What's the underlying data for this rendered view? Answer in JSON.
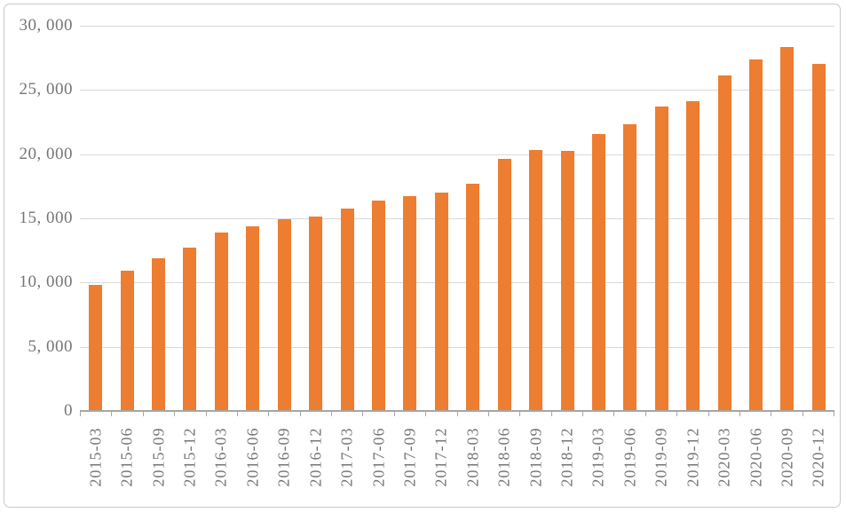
{
  "chart_data": {
    "type": "bar",
    "title": "",
    "xlabel": "",
    "ylabel": "",
    "categories": [
      "2015-03",
      "2015-06",
      "2015-09",
      "2015-12",
      "2016-03",
      "2016-06",
      "2016-09",
      "2016-12",
      "2017-03",
      "2017-06",
      "2017-09",
      "2017-12",
      "2018-03",
      "2018-06",
      "2018-09",
      "2018-12",
      "2019-03",
      "2019-06",
      "2019-09",
      "2019-12",
      "2020-03",
      "2020-06",
      "2020-09",
      "2020-12"
    ],
    "values": [
      9800,
      10950,
      11900,
      12750,
      13900,
      14400,
      14950,
      15150,
      15750,
      16350,
      16700,
      17000,
      17700,
      19600,
      20350,
      20250,
      21550,
      22350,
      23700,
      24100,
      26150,
      27350,
      28350,
      27000
    ],
    "ylim": [
      0,
      30000
    ],
    "ytick_interval": 5000,
    "ytick_values": [
      0,
      5000,
      10000,
      15000,
      20000,
      25000,
      30000
    ],
    "ytick_labels": [
      "0",
      "5, 000",
      "10, 000",
      "15, 000",
      "20, 000",
      "25, 000",
      "30, 000"
    ],
    "grid": "horizontal",
    "legend": "none",
    "colors": {
      "bar": "#ED7D31",
      "gridline": "#D9D9D9",
      "axis_line": "#A6A6A6",
      "tick": "#A6A6A6",
      "label": "#757575",
      "border": "#C9C9C9",
      "background": "#FFFFFF"
    }
  }
}
